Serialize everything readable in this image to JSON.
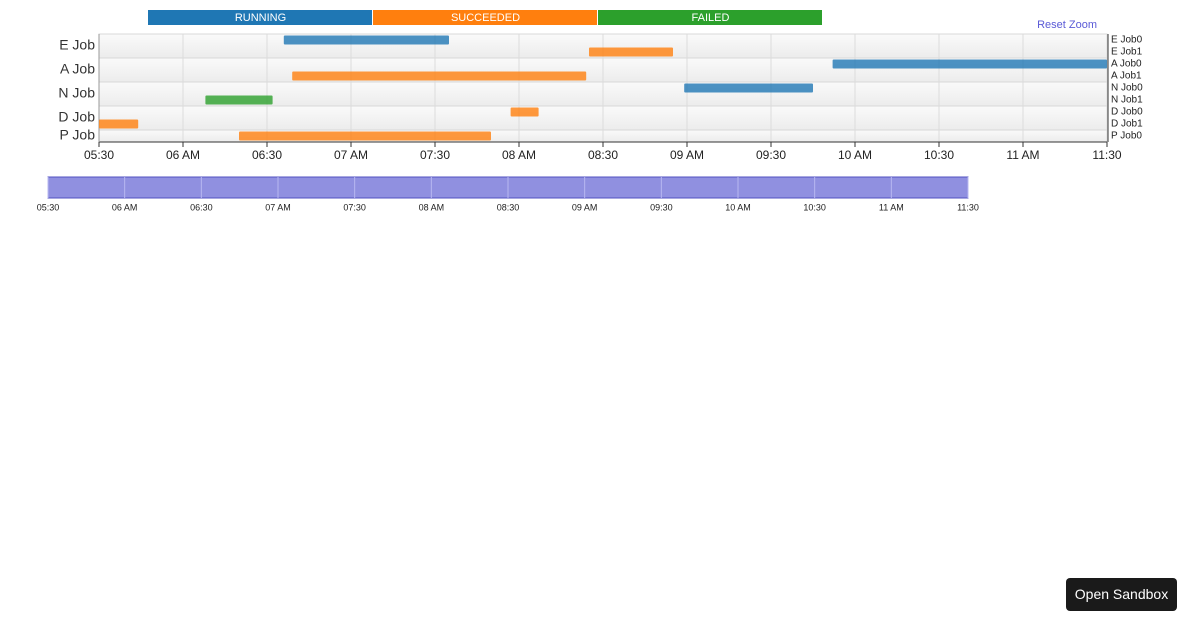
{
  "chart_data": {
    "type": "timeline",
    "statuses": [
      {
        "name": "RUNNING",
        "color": "#1f77b4"
      },
      {
        "name": "SUCCEEDED",
        "color": "#ff7f0e"
      },
      {
        "name": "FAILED",
        "color": "#2ca02c"
      }
    ],
    "reset_zoom": "Reset Zoom",
    "groups": [
      {
        "name": "E Job",
        "tasks": [
          {
            "name": "E Job0",
            "status": "RUNNING",
            "start": "06:36",
            "end": "07:35"
          },
          {
            "name": "E Job1",
            "status": "SUCCEEDED",
            "start": "08:25",
            "end": "08:55"
          }
        ]
      },
      {
        "name": "A Job",
        "tasks": [
          {
            "name": "A Job0",
            "status": "RUNNING",
            "start": "09:52",
            "end": "11:30"
          },
          {
            "name": "A Job1",
            "status": "SUCCEEDED",
            "start": "06:39",
            "end": "08:24"
          }
        ]
      },
      {
        "name": "N Job",
        "tasks": [
          {
            "name": "N Job0",
            "status": "RUNNING",
            "start": "08:59",
            "end": "09:45"
          },
          {
            "name": "N Job1",
            "status": "FAILED",
            "start": "06:08",
            "end": "06:32"
          }
        ]
      },
      {
        "name": "D Job",
        "tasks": [
          {
            "name": "D Job0",
            "status": "SUCCEEDED",
            "start": "07:57",
            "end": "08:07"
          },
          {
            "name": "D Job1",
            "status": "SUCCEEDED",
            "start": "05:30",
            "end": "05:44"
          }
        ]
      },
      {
        "name": "P Job",
        "tasks": [
          {
            "name": "P Job0",
            "status": "SUCCEEDED",
            "start": "06:20",
            "end": "07:50"
          }
        ]
      }
    ],
    "xlim": [
      "05:30",
      "11:30"
    ],
    "xticks": [
      {
        "value": "05:30",
        "label": "05:30"
      },
      {
        "value": "06:00",
        "label": "06 AM"
      },
      {
        "value": "06:30",
        "label": "06:30"
      },
      {
        "value": "07:00",
        "label": "07 AM"
      },
      {
        "value": "07:30",
        "label": "07:30"
      },
      {
        "value": "08:00",
        "label": "08 AM"
      },
      {
        "value": "08:30",
        "label": "08:30"
      },
      {
        "value": "09:00",
        "label": "09 AM"
      },
      {
        "value": "09:30",
        "label": "09:30"
      },
      {
        "value": "10:00",
        "label": "10 AM"
      },
      {
        "value": "10:30",
        "label": "10:30"
      },
      {
        "value": "11:00",
        "label": "11 AM"
      },
      {
        "value": "11:30",
        "label": "11:30"
      }
    ],
    "grid": true
  },
  "sandbox_button": "Open Sandbox"
}
